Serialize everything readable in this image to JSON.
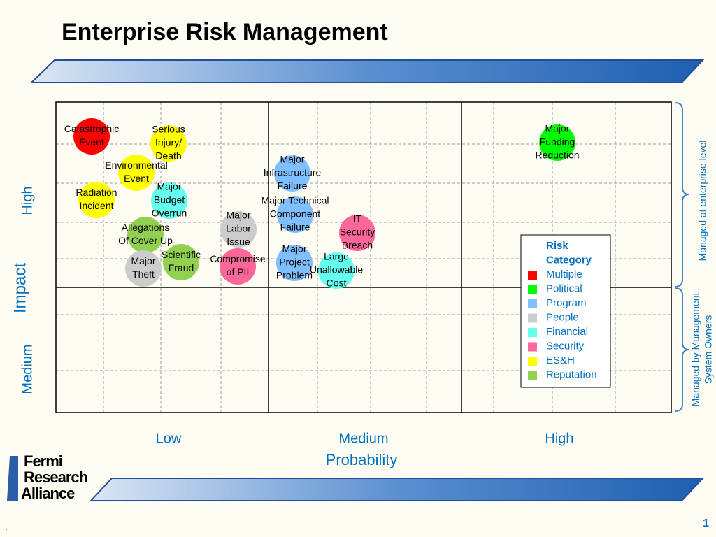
{
  "title": "Enterprise Risk Management",
  "axes": {
    "y_label": "Impact",
    "y_levels": [
      "High",
      "Medium"
    ],
    "x_label": "Probability",
    "x_levels": [
      "Low",
      "Medium",
      "High"
    ]
  },
  "brackets": [
    "Managed at enterprise level",
    [
      "Managed by Management",
      "System Owners"
    ]
  ],
  "legend": {
    "title": [
      "Risk",
      "Category"
    ],
    "items": [
      {
        "label": "Multiple",
        "color": "#ff0000"
      },
      {
        "label": "Political",
        "color": "#00ff00"
      },
      {
        "label": "Program",
        "color": "#7fbfff"
      },
      {
        "label": "People",
        "color": "#cccccc"
      },
      {
        "label": "Financial",
        "color": "#66ffee"
      },
      {
        "label": "Security",
        "color": "#ff6699"
      },
      {
        "label": "ES&H",
        "color": "#ffff00"
      },
      {
        "label": "Reputation",
        "color": "#92d050"
      }
    ]
  },
  "risks": [
    {
      "label": [
        "Catastrophic",
        "Event"
      ],
      "category": "Multiple"
    },
    {
      "label": [
        "Serious",
        "Injury/",
        "Death"
      ],
      "category": "ES&H"
    },
    {
      "label": [
        "Environmental",
        "Event"
      ],
      "category": "ES&H"
    },
    {
      "label": [
        "Radiation",
        "Incident"
      ],
      "category": "ES&H"
    },
    {
      "label": [
        "Major",
        "Budget",
        "Overrun"
      ],
      "category": "Financial"
    },
    {
      "label": [
        "Allegations",
        "Of Cover Up"
      ],
      "category": "Reputation"
    },
    {
      "label": [
        "Major",
        "Theft"
      ],
      "category": "People"
    },
    {
      "label": [
        "Scientific",
        "Fraud"
      ],
      "category": "Reputation"
    },
    {
      "label": [
        "Major",
        "Labor",
        "Issue"
      ],
      "category": "People"
    },
    {
      "label": [
        "Compromise",
        "of PII"
      ],
      "category": "Security"
    },
    {
      "label": [
        "Major",
        "Infrastructure",
        "Failure"
      ],
      "category": "Program"
    },
    {
      "label": [
        "Major Technical",
        "Component",
        "Failure"
      ],
      "category": "Program"
    },
    {
      "label": [
        "IT",
        "Security",
        "Breach"
      ],
      "category": "Security"
    },
    {
      "label": [
        "Major",
        "Project",
        "Problem"
      ],
      "category": "Program"
    },
    {
      "label": [
        "Large",
        "Unallowable",
        "Cost"
      ],
      "category": "Financial"
    },
    {
      "label": [
        "Major",
        "Funding",
        "Reduction"
      ],
      "category": "Political"
    }
  ],
  "logo": [
    "Fermi",
    "Research",
    "Alliance"
  ],
  "footnote": ".",
  "page_number": "1"
}
